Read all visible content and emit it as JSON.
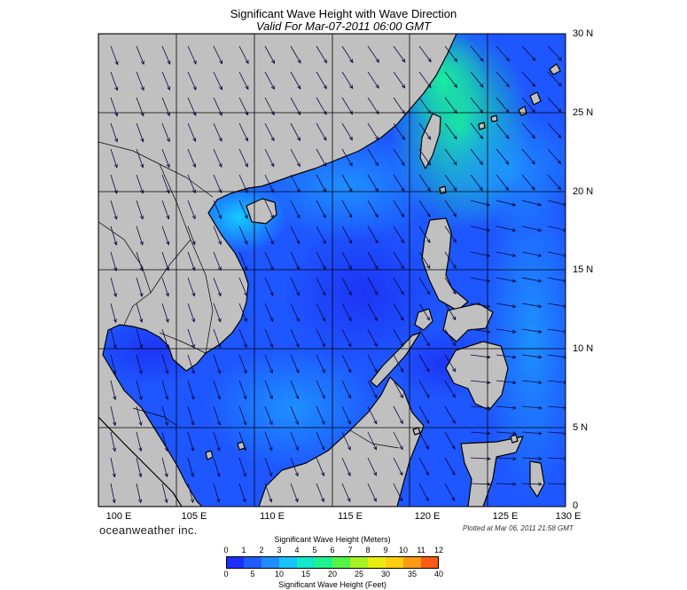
{
  "map": {
    "title": "Significant Wave Height with Wave Direction",
    "subtitle": "Valid For Mar-07-2011 06:00 GMT",
    "latitude_labels": [
      "30 N",
      "25 N",
      "20 N",
      "15 N",
      "10 N",
      "5 N",
      "0"
    ],
    "longitude_labels": [
      "100 E",
      "105 E",
      "110 E",
      "115 E",
      "120 E",
      "125 E",
      "130 E"
    ],
    "extent": {
      "lon_min": 100,
      "lon_max": 130,
      "lat_min": 0,
      "lat_max": 30
    },
    "grid_spacing_degrees": 5,
    "land_color": "#c0c0c0",
    "ocean_base_color": "#1e56ff",
    "coastline_color": "#000000",
    "arrow_general_direction": "toward southwest",
    "branding": "oceanweather inc.",
    "plotted_note": "Plotted at Mar 06, 2011 21:58 GMT"
  },
  "colorbar": {
    "meters_title": "Significant Wave Height (Meters)",
    "meters_ticks": [
      "0",
      "1",
      "2",
      "3",
      "4",
      "5",
      "6",
      "7",
      "8",
      "9",
      "10",
      "11",
      "12"
    ],
    "feet_ticks": [
      "0",
      "5",
      "10",
      "15",
      "20",
      "25",
      "30",
      "35",
      "40"
    ],
    "feet_title": "Significant Wave Height (Feet)",
    "colors": [
      "#1a2fff",
      "#1f5cff",
      "#1f8cff",
      "#16c3ff",
      "#13e8c8",
      "#1ef28c",
      "#52f545",
      "#a6f224",
      "#e8ec10",
      "#ffce12",
      "#ff9a12",
      "#ff5a14"
    ]
  }
}
